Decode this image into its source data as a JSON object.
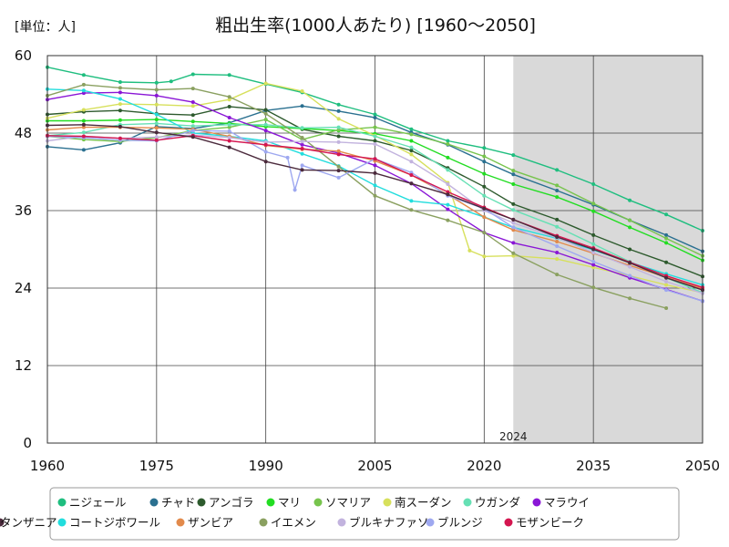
{
  "chart_data": {
    "type": "line",
    "title": "粗出生率(1000人あたり) [1960〜2050]",
    "unit_label": "[単位：人]",
    "xlabel": "",
    "ylabel": "",
    "xlim": [
      1960,
      2050
    ],
    "ylim": [
      0,
      60
    ],
    "x_ticks": [
      1960,
      1975,
      1990,
      2005,
      2020,
      2035,
      2050
    ],
    "y_ticks": [
      0,
      12,
      24,
      36,
      48,
      60
    ],
    "grid": true,
    "projection_start": 2024,
    "projection_label": "2024",
    "legend_position": "bottom",
    "series": [
      {
        "name": "ニジェール",
        "color": "#1fbe7f",
        "points": [
          [
            1960,
            58.2
          ],
          [
            1965,
            57.0
          ],
          [
            1970,
            55.9
          ],
          [
            1975,
            55.8
          ],
          [
            1977,
            56.0
          ],
          [
            1980,
            57.1
          ],
          [
            1985,
            57.0
          ],
          [
            1990,
            55.6
          ],
          [
            1995,
            54.3
          ],
          [
            2000,
            52.4
          ],
          [
            2005,
            50.9
          ],
          [
            2010,
            48.6
          ],
          [
            2015,
            46.8
          ],
          [
            2020,
            45.7
          ],
          [
            2024,
            44.6
          ],
          [
            2030,
            42.3
          ],
          [
            2035,
            40.1
          ],
          [
            2040,
            37.6
          ],
          [
            2045,
            35.4
          ],
          [
            2050,
            32.9
          ]
        ]
      },
      {
        "name": "チャド",
        "color": "#2a7090",
        "points": [
          [
            1960,
            45.9
          ],
          [
            1965,
            45.4
          ],
          [
            1970,
            46.5
          ],
          [
            1975,
            49.0
          ],
          [
            1980,
            48.7
          ],
          [
            1985,
            49.6
          ],
          [
            1990,
            51.5
          ],
          [
            1995,
            52.2
          ],
          [
            2000,
            51.4
          ],
          [
            2005,
            50.4
          ],
          [
            2010,
            48.1
          ],
          [
            2015,
            46.2
          ],
          [
            2020,
            43.6
          ],
          [
            2024,
            41.6
          ],
          [
            2030,
            39.1
          ],
          [
            2035,
            36.9
          ],
          [
            2040,
            34.5
          ],
          [
            2045,
            32.2
          ],
          [
            2050,
            29.7
          ]
        ]
      },
      {
        "name": "アンゴラ",
        "color": "#2d5a2d",
        "points": [
          [
            1960,
            50.9
          ],
          [
            1965,
            51.3
          ],
          [
            1970,
            51.5
          ],
          [
            1975,
            51.0
          ],
          [
            1980,
            50.8
          ],
          [
            1985,
            52.1
          ],
          [
            1990,
            51.6
          ],
          [
            1995,
            48.6
          ],
          [
            2000,
            47.5
          ],
          [
            2005,
            46.8
          ],
          [
            2010,
            45.3
          ],
          [
            2015,
            42.6
          ],
          [
            2020,
            39.7
          ],
          [
            2024,
            37.0
          ],
          [
            2030,
            34.6
          ],
          [
            2035,
            32.2
          ],
          [
            2040,
            30.0
          ],
          [
            2045,
            28.0
          ],
          [
            2050,
            25.8
          ]
        ]
      },
      {
        "name": "マリ",
        "color": "#22dd22",
        "points": [
          [
            1960,
            49.9
          ],
          [
            1965,
            49.9
          ],
          [
            1970,
            50.0
          ],
          [
            1975,
            50.1
          ],
          [
            1980,
            49.8
          ],
          [
            1985,
            49.5
          ],
          [
            1990,
            49.0
          ],
          [
            1995,
            48.7
          ],
          [
            2000,
            48.4
          ],
          [
            2005,
            47.9
          ],
          [
            2010,
            46.8
          ],
          [
            2015,
            44.2
          ],
          [
            2020,
            41.7
          ],
          [
            2024,
            40.1
          ],
          [
            2030,
            38.1
          ],
          [
            2035,
            35.9
          ],
          [
            2040,
            33.4
          ],
          [
            2045,
            31.0
          ],
          [
            2050,
            28.3
          ]
        ]
      },
      {
        "name": "ソマリア",
        "color": "#77c44d",
        "points": [
          [
            1960,
            47.5
          ],
          [
            1965,
            47.0
          ],
          [
            1970,
            46.7
          ],
          [
            1975,
            47.3
          ],
          [
            1980,
            48.4
          ],
          [
            1985,
            48.9
          ],
          [
            1990,
            50.1
          ],
          [
            1995,
            47.0
          ],
          [
            2000,
            48.5
          ],
          [
            2005,
            48.9
          ],
          [
            2010,
            47.8
          ],
          [
            2015,
            46.3
          ],
          [
            2020,
            44.4
          ],
          [
            2024,
            42.2
          ],
          [
            2030,
            39.9
          ],
          [
            2035,
            37.1
          ],
          [
            2040,
            34.5
          ],
          [
            2045,
            31.7
          ],
          [
            2050,
            29.0
          ]
        ]
      },
      {
        "name": "南スーダン",
        "color": "#d7e05c",
        "points": [
          [
            1960,
            50.3
          ],
          [
            1965,
            51.6
          ],
          [
            1970,
            52.5
          ],
          [
            1975,
            52.4
          ],
          [
            1980,
            52.2
          ],
          [
            1985,
            53.2
          ],
          [
            1990,
            55.7
          ],
          [
            1995,
            54.5
          ],
          [
            2000,
            50.2
          ],
          [
            2005,
            47.6
          ],
          [
            2010,
            44.7
          ],
          [
            2015,
            40.3
          ],
          [
            2018,
            29.8
          ],
          [
            2020,
            28.9
          ],
          [
            2024,
            29.0
          ],
          [
            2030,
            28.5
          ],
          [
            2035,
            27.2
          ],
          [
            2040,
            25.9
          ],
          [
            2045,
            24.5
          ],
          [
            2050,
            23.3
          ]
        ]
      },
      {
        "name": "ウガンダ",
        "color": "#66e0b4",
        "points": [
          [
            1960,
            47.6
          ],
          [
            1965,
            48.1
          ],
          [
            1970,
            49.3
          ],
          [
            1975,
            49.5
          ],
          [
            1980,
            49.1
          ],
          [
            1985,
            49.3
          ],
          [
            1990,
            49.3
          ],
          [
            1995,
            48.8
          ],
          [
            2000,
            48.9
          ],
          [
            2005,
            47.5
          ],
          [
            2010,
            45.8
          ],
          [
            2015,
            42.3
          ],
          [
            2020,
            38.3
          ],
          [
            2024,
            36.1
          ],
          [
            2030,
            33.5
          ],
          [
            2035,
            30.8
          ],
          [
            2040,
            28.1
          ],
          [
            2045,
            25.6
          ],
          [
            2050,
            23.3
          ]
        ]
      },
      {
        "name": "マラウイ",
        "color": "#8a16d6",
        "points": [
          [
            1960,
            53.2
          ],
          [
            1965,
            54.2
          ],
          [
            1970,
            54.3
          ],
          [
            1975,
            53.8
          ],
          [
            1980,
            52.8
          ],
          [
            1985,
            50.4
          ],
          [
            1990,
            48.4
          ],
          [
            1995,
            46.2
          ],
          [
            2000,
            44.9
          ],
          [
            2005,
            43.0
          ],
          [
            2010,
            40.2
          ],
          [
            2015,
            36.2
          ],
          [
            2020,
            32.6
          ],
          [
            2024,
            31.0
          ],
          [
            2030,
            29.5
          ],
          [
            2035,
            27.6
          ],
          [
            2040,
            25.6
          ],
          [
            2045,
            23.8
          ],
          [
            2050,
            22.0
          ]
        ]
      },
      {
        "name": "コートジボワール",
        "color": "#22dddd",
        "points": [
          [
            1960,
            54.8
          ],
          [
            1965,
            54.6
          ],
          [
            1970,
            53.3
          ],
          [
            1975,
            50.9
          ],
          [
            1980,
            48.0
          ],
          [
            1985,
            47.5
          ],
          [
            1990,
            46.8
          ],
          [
            1995,
            44.8
          ],
          [
            2000,
            42.9
          ],
          [
            2005,
            39.9
          ],
          [
            2010,
            37.5
          ],
          [
            2015,
            36.9
          ],
          [
            2020,
            35.0
          ],
          [
            2024,
            33.4
          ],
          [
            2030,
            31.7
          ],
          [
            2035,
            29.9
          ],
          [
            2040,
            28.0
          ],
          [
            2045,
            26.2
          ],
          [
            2050,
            24.5
          ]
        ]
      },
      {
        "name": "ザンビア",
        "color": "#e28a4b",
        "points": [
          [
            1960,
            48.5
          ],
          [
            1965,
            48.9
          ],
          [
            1970,
            48.9
          ],
          [
            1975,
            48.8
          ],
          [
            1980,
            48.6
          ],
          [
            1985,
            47.5
          ],
          [
            1990,
            46.1
          ],
          [
            1995,
            45.5
          ],
          [
            2000,
            45.2
          ],
          [
            2005,
            43.7
          ],
          [
            2010,
            41.5
          ],
          [
            2015,
            38.5
          ],
          [
            2020,
            35.0
          ],
          [
            2024,
            33.0
          ],
          [
            2030,
            31.2
          ],
          [
            2035,
            29.4
          ],
          [
            2040,
            27.5
          ],
          [
            2045,
            25.7
          ],
          [
            2050,
            23.9
          ]
        ]
      },
      {
        "name": "イエメン",
        "color": "#8aa060",
        "points": [
          [
            1960,
            53.8
          ],
          [
            1965,
            55.5
          ],
          [
            1970,
            55.0
          ],
          [
            1975,
            54.7
          ],
          [
            1980,
            54.9
          ],
          [
            1985,
            53.6
          ],
          [
            1990,
            51.0
          ],
          [
            1995,
            47.3
          ],
          [
            2000,
            42.8
          ],
          [
            2005,
            38.3
          ],
          [
            2010,
            36.1
          ],
          [
            2015,
            34.5
          ],
          [
            2020,
            32.6
          ],
          [
            2024,
            29.4
          ],
          [
            2030,
            26.1
          ],
          [
            2035,
            24.1
          ],
          [
            2040,
            22.4
          ],
          [
            2045,
            20.9
          ]
        ]
      },
      {
        "name": "ブルキナファソ",
        "color": "#c2b3de",
        "points": [
          [
            1960,
            46.8
          ],
          [
            1965,
            47.5
          ],
          [
            1970,
            47.2
          ],
          [
            1975,
            47.4
          ],
          [
            1980,
            47.7
          ],
          [
            1985,
            47.3
          ],
          [
            1990,
            46.6
          ],
          [
            1995,
            46.7
          ],
          [
            2000,
            46.6
          ],
          [
            2005,
            46.3
          ],
          [
            2010,
            43.6
          ],
          [
            2015,
            40.1
          ],
          [
            2020,
            36.0
          ],
          [
            2024,
            34.1
          ],
          [
            2030,
            31.8
          ],
          [
            2035,
            29.5
          ],
          [
            2040,
            27.3
          ],
          [
            2045,
            25.0
          ],
          [
            2050,
            23.2
          ]
        ]
      },
      {
        "name": "ブルンジ",
        "color": "#9ea8f0",
        "points": [
          [
            1960,
            47.5
          ],
          [
            1965,
            47.3
          ],
          [
            1970,
            46.9
          ],
          [
            1975,
            46.8
          ],
          [
            1980,
            48.4
          ],
          [
            1985,
            48.3
          ],
          [
            1990,
            45.1
          ],
          [
            1993,
            44.2
          ],
          [
            1994,
            39.2
          ],
          [
            1995,
            43.0
          ],
          [
            2000,
            41.1
          ],
          [
            2005,
            44.0
          ],
          [
            2010,
            41.9
          ],
          [
            2015,
            38.3
          ],
          [
            2020,
            36.3
          ],
          [
            2024,
            33.4
          ],
          [
            2030,
            30.5
          ],
          [
            2035,
            28.1
          ],
          [
            2040,
            25.9
          ],
          [
            2045,
            23.7
          ],
          [
            2050,
            22.0
          ]
        ]
      },
      {
        "name": "モザンビーク",
        "color": "#d41650",
        "points": [
          [
            1960,
            47.6
          ],
          [
            1965,
            47.5
          ],
          [
            1970,
            47.2
          ],
          [
            1975,
            46.9
          ],
          [
            1980,
            47.6
          ],
          [
            1985,
            46.8
          ],
          [
            1990,
            46.2
          ],
          [
            1995,
            45.6
          ],
          [
            2000,
            44.7
          ],
          [
            2005,
            44.0
          ],
          [
            2010,
            41.5
          ],
          [
            2015,
            38.9
          ],
          [
            2020,
            36.5
          ],
          [
            2024,
            34.6
          ],
          [
            2030,
            32.1
          ],
          [
            2035,
            30.2
          ],
          [
            2040,
            28.0
          ],
          [
            2045,
            25.9
          ],
          [
            2050,
            24.1
          ]
        ]
      },
      {
        "name": "タンザニア",
        "color": "#4b2a3c",
        "points": [
          [
            1960,
            49.2
          ],
          [
            1965,
            49.3
          ],
          [
            1970,
            49.0
          ],
          [
            1975,
            48.1
          ],
          [
            1980,
            47.4
          ],
          [
            1985,
            45.8
          ],
          [
            1990,
            43.6
          ],
          [
            1995,
            42.3
          ],
          [
            2000,
            42.2
          ],
          [
            2005,
            41.8
          ],
          [
            2010,
            40.2
          ],
          [
            2015,
            38.5
          ],
          [
            2020,
            36.3
          ],
          [
            2024,
            34.6
          ],
          [
            2030,
            31.9
          ],
          [
            2035,
            30.0
          ],
          [
            2040,
            27.9
          ],
          [
            2045,
            25.6
          ],
          [
            2050,
            23.7
          ]
        ]
      }
    ]
  }
}
